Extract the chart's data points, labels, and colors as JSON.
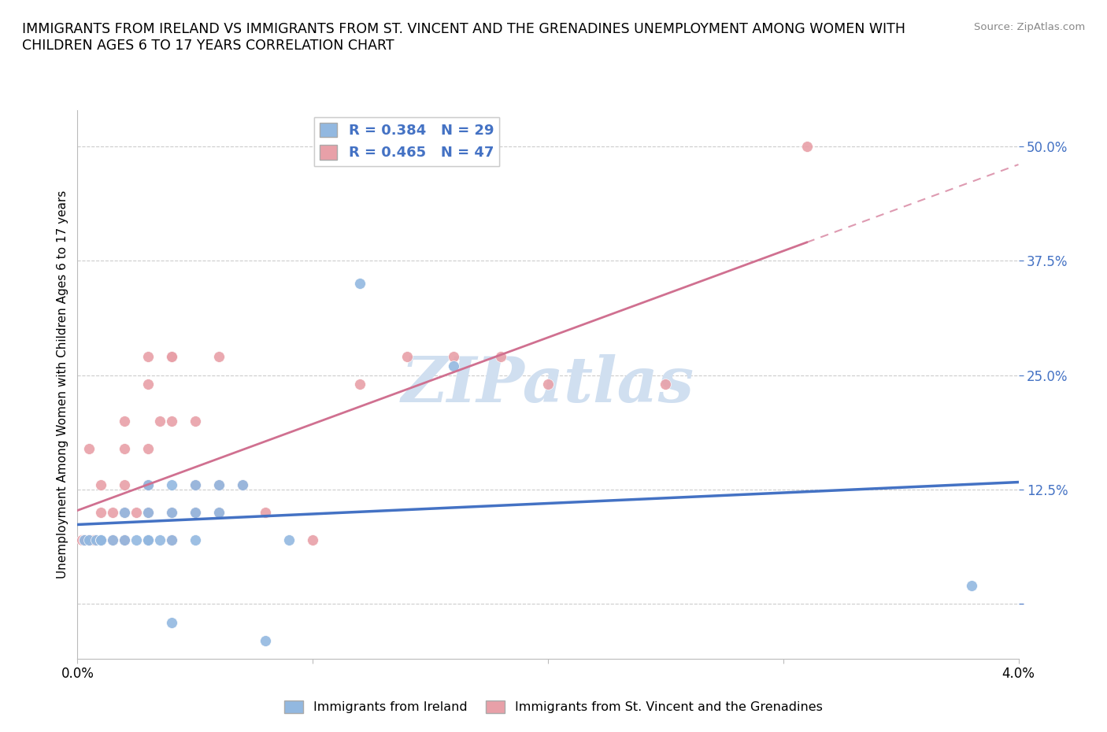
{
  "title": "IMMIGRANTS FROM IRELAND VS IMMIGRANTS FROM ST. VINCENT AND THE GRENADINES UNEMPLOYMENT AMONG WOMEN WITH\nCHILDREN AGES 6 TO 17 YEARS CORRELATION CHART",
  "source": "Source: ZipAtlas.com",
  "ylabel": "Unemployment Among Women with Children Ages 6 to 17 years",
  "xlim": [
    0.0,
    0.04
  ],
  "ylim": [
    -0.06,
    0.54
  ],
  "ytick_positions": [
    0.0,
    0.125,
    0.25,
    0.375,
    0.5
  ],
  "ytick_labels": [
    "",
    "12.5%",
    "25.0%",
    "37.5%",
    "50.0%"
  ],
  "xtick_positions": [
    0.0,
    0.01,
    0.02,
    0.03,
    0.04
  ],
  "xtick_labels": [
    "0.0%",
    "",
    "",
    "",
    "4.0%"
  ],
  "ireland_R": 0.384,
  "ireland_N": 29,
  "svg_R": 0.465,
  "svg_N": 47,
  "ireland_color": "#92b8e0",
  "svg_color": "#e8a0a8",
  "ireland_line_color": "#4472c4",
  "svg_line_color": "#d07090",
  "watermark_color": "#d0dff0",
  "legend_label_ireland": "Immigrants from Ireland",
  "legend_label_svg": "Immigrants from St. Vincent and the Grenadines",
  "ireland_x": [
    0.0003,
    0.0005,
    0.0008,
    0.001,
    0.001,
    0.0015,
    0.002,
    0.002,
    0.0025,
    0.003,
    0.003,
    0.003,
    0.003,
    0.0035,
    0.004,
    0.004,
    0.004,
    0.004,
    0.005,
    0.005,
    0.005,
    0.006,
    0.006,
    0.007,
    0.008,
    0.009,
    0.012,
    0.016,
    0.038
  ],
  "ireland_y": [
    0.07,
    0.07,
    0.07,
    0.07,
    0.07,
    0.07,
    0.07,
    0.1,
    0.07,
    0.07,
    0.07,
    0.1,
    0.13,
    0.07,
    -0.02,
    0.07,
    0.1,
    0.13,
    0.07,
    0.1,
    0.13,
    0.1,
    0.13,
    0.13,
    -0.04,
    0.07,
    0.35,
    0.26,
    0.02
  ],
  "svg_x": [
    0.0002,
    0.0003,
    0.0005,
    0.0005,
    0.0007,
    0.001,
    0.001,
    0.001,
    0.001,
    0.0015,
    0.0015,
    0.002,
    0.002,
    0.002,
    0.002,
    0.002,
    0.002,
    0.0025,
    0.003,
    0.003,
    0.003,
    0.003,
    0.003,
    0.003,
    0.003,
    0.0035,
    0.004,
    0.004,
    0.004,
    0.004,
    0.004,
    0.005,
    0.005,
    0.005,
    0.006,
    0.006,
    0.006,
    0.007,
    0.008,
    0.01,
    0.012,
    0.014,
    0.016,
    0.018,
    0.02,
    0.025,
    0.031
  ],
  "svg_y": [
    0.07,
    0.07,
    0.17,
    0.07,
    0.07,
    0.07,
    0.07,
    0.1,
    0.13,
    0.07,
    0.1,
    0.07,
    0.07,
    0.1,
    0.13,
    0.17,
    0.2,
    0.1,
    0.07,
    0.1,
    0.1,
    0.13,
    0.17,
    0.24,
    0.27,
    0.2,
    0.07,
    0.1,
    0.2,
    0.27,
    0.27,
    0.1,
    0.13,
    0.2,
    0.1,
    0.13,
    0.27,
    0.13,
    0.1,
    0.07,
    0.24,
    0.27,
    0.27,
    0.27,
    0.24,
    0.24,
    0.5
  ]
}
